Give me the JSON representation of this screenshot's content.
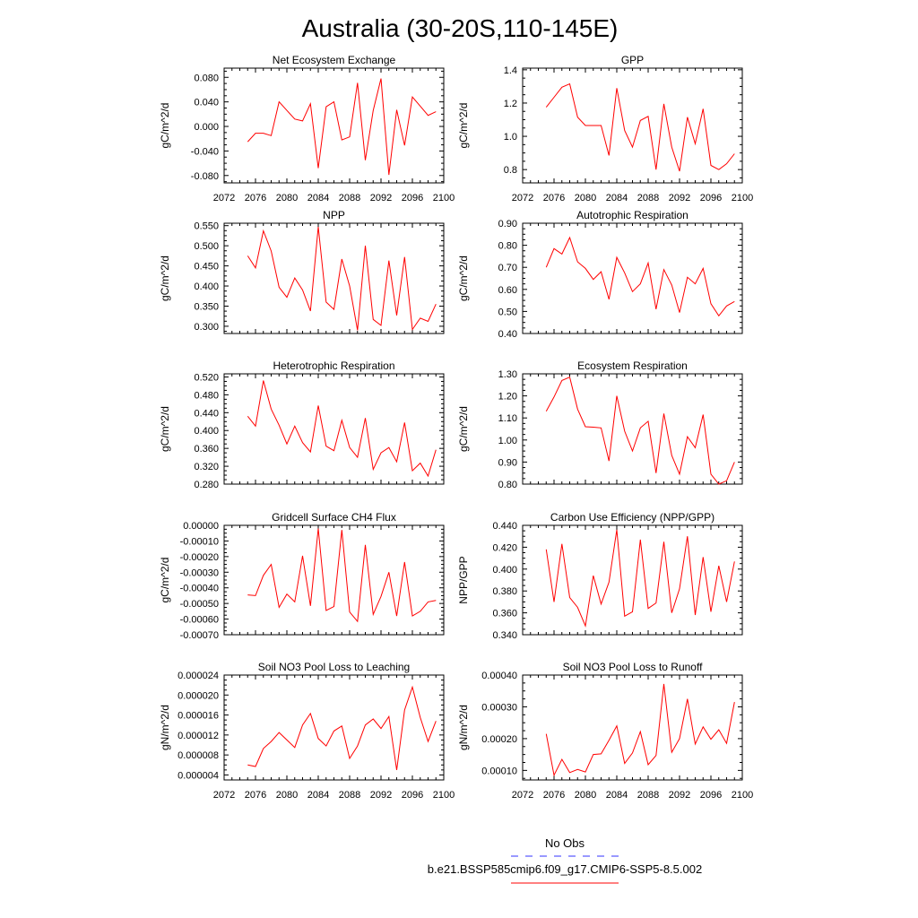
{
  "title": "Australia (30-20S,110-145E)",
  "legend": {
    "obs_label": "No Obs",
    "obs_color": "#3333ff",
    "model_label": "b.e21.BSSP585cmip6.f09_g17.CMIP6-SSP5-8.5.002",
    "model_color": "#ff0000"
  },
  "chart_data": [
    {
      "type": "line",
      "title": "Net Ecosystem Exchange",
      "ylabel": "gC/m^2/d",
      "xlim": [
        2072,
        2100
      ],
      "xticks": [
        "2072",
        "2076",
        "2080",
        "2084",
        "2088",
        "2092",
        "2096",
        "2100"
      ],
      "ylim": [
        -0.092,
        0.095
      ],
      "yticks": [
        "0.080",
        "0.040",
        "0.000",
        "-0.040",
        "-0.080"
      ],
      "x": [
        2075,
        2076,
        2077,
        2078,
        2079,
        2080,
        2081,
        2082,
        2083,
        2084,
        2085,
        2086,
        2087,
        2088,
        2089,
        2090,
        2091,
        2092,
        2093,
        2094,
        2095,
        2096,
        2097,
        2098,
        2099
      ],
      "series": [
        {
          "values": [
            -0.025,
            -0.011,
            -0.011,
            -0.015,
            0.04,
            0.026,
            0.012,
            0.009,
            0.037,
            -0.068,
            0.032,
            0.04,
            -0.022,
            -0.017,
            0.071,
            -0.055,
            0.026,
            0.078,
            -0.079,
            0.027,
            -0.031,
            0.048,
            0.033,
            0.018,
            0.024
          ]
        }
      ]
    },
    {
      "type": "line",
      "title": "GPP",
      "ylabel": "gC/m^2/d",
      "xlim": [
        2072,
        2100
      ],
      "xticks": [
        "2072",
        "2076",
        "2080",
        "2084",
        "2088",
        "2092",
        "2096",
        "2100"
      ],
      "ylim": [
        0.72,
        1.41
      ],
      "yticks": [
        "1.4",
        "1.2",
        "1.0",
        "0.8"
      ],
      "x": [
        2075,
        2076,
        2077,
        2078,
        2079,
        2080,
        2081,
        2082,
        2083,
        2084,
        2085,
        2086,
        2087,
        2088,
        2089,
        2090,
        2091,
        2092,
        2093,
        2094,
        2095,
        2096,
        2097,
        2098,
        2099
      ],
      "series": [
        {
          "values": [
            1.175,
            1.235,
            1.295,
            1.315,
            1.115,
            1.065,
            1.065,
            1.065,
            0.885,
            1.29,
            1.035,
            0.935,
            1.095,
            1.12,
            0.8,
            1.195,
            0.935,
            0.79,
            1.115,
            0.955,
            1.165,
            0.825,
            0.8,
            0.835,
            0.895
          ]
        }
      ]
    },
    {
      "type": "line",
      "title": "NPP",
      "ylabel": "gC/m^2/d",
      "xlim": [
        2072,
        2100
      ],
      "xticks": [
        "2072",
        "2076",
        "2080",
        "2084",
        "2088",
        "2092",
        "2096",
        "2100"
      ],
      "ylim": [
        0.282,
        0.556
      ],
      "yticks": [
        "0.550",
        "0.500",
        "0.450",
        "0.400",
        "0.350",
        "0.300"
      ],
      "x": [
        2075,
        2076,
        2077,
        2078,
        2079,
        2080,
        2081,
        2082,
        2083,
        2084,
        2085,
        2086,
        2087,
        2088,
        2089,
        2090,
        2091,
        2092,
        2093,
        2094,
        2095,
        2096,
        2097,
        2098,
        2099
      ],
      "series": [
        {
          "values": [
            0.475,
            0.445,
            0.537,
            0.487,
            0.397,
            0.372,
            0.42,
            0.39,
            0.338,
            0.547,
            0.36,
            0.342,
            0.467,
            0.4,
            0.29,
            0.5,
            0.317,
            0.302,
            0.463,
            0.327,
            0.472,
            0.292,
            0.32,
            0.312,
            0.355
          ]
        }
      ]
    },
    {
      "type": "line",
      "title": "Autotrophic Respiration",
      "ylabel": "gC/m^2/d",
      "xlim": [
        2072,
        2100
      ],
      "xticks": [
        "2072",
        "2076",
        "2080",
        "2084",
        "2088",
        "2092",
        "2096",
        "2100"
      ],
      "ylim": [
        0.4,
        0.9
      ],
      "yticks": [
        "0.90",
        "0.80",
        "0.70",
        "0.60",
        "0.50",
        "0.40"
      ],
      "x": [
        2075,
        2076,
        2077,
        2078,
        2079,
        2080,
        2081,
        2082,
        2083,
        2084,
        2085,
        2086,
        2087,
        2088,
        2089,
        2090,
        2091,
        2092,
        2093,
        2094,
        2095,
        2096,
        2097,
        2098,
        2099
      ],
      "series": [
        {
          "values": [
            0.7,
            0.785,
            0.76,
            0.835,
            0.725,
            0.695,
            0.645,
            0.68,
            0.555,
            0.745,
            0.675,
            0.59,
            0.625,
            0.72,
            0.51,
            0.69,
            0.62,
            0.495,
            0.655,
            0.625,
            0.695,
            0.535,
            0.48,
            0.525,
            0.545
          ]
        }
      ]
    },
    {
      "type": "line",
      "title": "Heterotrophic Respiration",
      "ylabel": "gC/m^2/d",
      "xlim": [
        2072,
        2100
      ],
      "xticks": [
        "2072",
        "2076",
        "2080",
        "2084",
        "2088",
        "2092",
        "2096",
        "2100"
      ],
      "ylim": [
        0.28,
        0.527
      ],
      "yticks": [
        "0.520",
        "0.480",
        "0.440",
        "0.400",
        "0.360",
        "0.320",
        "0.280"
      ],
      "x": [
        2075,
        2076,
        2077,
        2078,
        2079,
        2080,
        2081,
        2082,
        2083,
        2084,
        2085,
        2086,
        2087,
        2088,
        2089,
        2090,
        2091,
        2092,
        2093,
        2094,
        2095,
        2096,
        2097,
        2098,
        2099
      ],
      "series": [
        {
          "values": [
            0.432,
            0.41,
            0.512,
            0.448,
            0.412,
            0.37,
            0.41,
            0.373,
            0.352,
            0.456,
            0.365,
            0.355,
            0.423,
            0.362,
            0.34,
            0.428,
            0.313,
            0.35,
            0.362,
            0.33,
            0.418,
            0.31,
            0.327,
            0.298,
            0.357
          ]
        }
      ]
    },
    {
      "type": "line",
      "title": "Ecosystem Respiration",
      "ylabel": "gC/m^2/d",
      "xlim": [
        2072,
        2100
      ],
      "xticks": [
        "2072",
        "2076",
        "2080",
        "2084",
        "2088",
        "2092",
        "2096",
        "2100"
      ],
      "ylim": [
        0.8,
        1.3
      ],
      "yticks": [
        "1.30",
        "1.20",
        "1.10",
        "1.00",
        "0.90",
        "0.80"
      ],
      "x": [
        2075,
        2076,
        2077,
        2078,
        2079,
        2080,
        2081,
        2082,
        2083,
        2084,
        2085,
        2086,
        2087,
        2088,
        2089,
        2090,
        2091,
        2092,
        2093,
        2094,
        2095,
        2096,
        2097,
        2098,
        2099
      ],
      "series": [
        {
          "values": [
            1.13,
            1.195,
            1.27,
            1.285,
            1.14,
            1.06,
            1.058,
            1.055,
            0.905,
            1.2,
            1.04,
            0.95,
            1.055,
            1.085,
            0.85,
            1.12,
            0.93,
            0.845,
            1.015,
            0.965,
            1.115,
            0.845,
            0.8,
            0.815,
            0.9
          ]
        }
      ]
    },
    {
      "type": "line",
      "title": "Gridcell Surface CH4 Flux",
      "ylabel": "gC/m^2/d",
      "xlim": [
        2072,
        2100
      ],
      "xticks": [
        "2072",
        "2076",
        "2080",
        "2084",
        "2088",
        "2092",
        "2096",
        "2100"
      ],
      "ylim": [
        -0.0007,
        0.0
      ],
      "yticks": [
        "0.00000",
        "-0.00010",
        "-0.00020",
        "-0.00030",
        "-0.00040",
        "-0.00050",
        "-0.00060",
        "-0.00070"
      ],
      "x": [
        2075,
        2076,
        2077,
        2078,
        2079,
        2080,
        2081,
        2082,
        2083,
        2084,
        2085,
        2086,
        2087,
        2088,
        2089,
        2090,
        2091,
        2092,
        2093,
        2094,
        2095,
        2096,
        2097,
        2098,
        2099
      ],
      "series": [
        {
          "values": [
            -0.000445,
            -0.00045,
            -0.00032,
            -0.00025,
            -0.000525,
            -0.00044,
            -0.00049,
            -0.000195,
            -0.000515,
            -2e-05,
            -0.000545,
            -0.00052,
            -3e-05,
            -0.000555,
            -0.000615,
            -0.000125,
            -0.00057,
            -0.000455,
            -0.0003,
            -0.00058,
            -0.000235,
            -0.00058,
            -0.00055,
            -0.00049,
            -0.00048
          ]
        }
      ]
    },
    {
      "type": "line",
      "title": "Carbon Use Efficiency (NPP/GPP)",
      "ylabel": "NPP/GPP",
      "xlim": [
        2072,
        2100
      ],
      "xticks": [
        "2072",
        "2076",
        "2080",
        "2084",
        "2088",
        "2092",
        "2096",
        "2100"
      ],
      "ylim": [
        0.34,
        0.44
      ],
      "yticks": [
        "0.440",
        "0.420",
        "0.400",
        "0.380",
        "0.360",
        "0.340"
      ],
      "x": [
        2075,
        2076,
        2077,
        2078,
        2079,
        2080,
        2081,
        2082,
        2083,
        2084,
        2085,
        2086,
        2087,
        2088,
        2089,
        2090,
        2091,
        2092,
        2093,
        2094,
        2095,
        2096,
        2097,
        2098,
        2099
      ],
      "series": [
        {
          "values": [
            0.418,
            0.37,
            0.423,
            0.374,
            0.365,
            0.348,
            0.394,
            0.368,
            0.388,
            0.436,
            0.357,
            0.361,
            0.427,
            0.364,
            0.369,
            0.425,
            0.36,
            0.382,
            0.43,
            0.358,
            0.411,
            0.361,
            0.403,
            0.37,
            0.407
          ]
        }
      ]
    },
    {
      "type": "line",
      "title": "Soil NO3 Pool Loss to Leaching",
      "ylabel": "gN/m^2/d",
      "xlim": [
        2072,
        2100
      ],
      "xticks": [
        "2072",
        "2076",
        "2080",
        "2084",
        "2088",
        "2092",
        "2096",
        "2100"
      ],
      "ylim": [
        3e-06,
        2.4e-05
      ],
      "yticks": [
        "0.000024",
        "0.000020",
        "0.000016",
        "0.000012",
        "0.000008",
        "0.000004"
      ],
      "x": [
        2075,
        2076,
        2077,
        2078,
        2079,
        2080,
        2081,
        2082,
        2083,
        2084,
        2085,
        2086,
        2087,
        2088,
        2089,
        2090,
        2091,
        2092,
        2093,
        2094,
        2095,
        2096,
        2097,
        2098,
        2099
      ],
      "series": [
        {
          "values": [
            6e-06,
            5.7e-06,
            9.3e-06,
            1.07e-05,
            1.25e-05,
            1.1e-05,
            9.5e-06,
            1.4e-05,
            1.63e-05,
            1.13e-05,
            9.8e-06,
            1.28e-05,
            1.38e-05,
            7.3e-06,
            9.8e-06,
            1.4e-05,
            1.52e-05,
            1.33e-05,
            1.57e-05,
            5e-06,
            1.7e-05,
            2.16e-05,
            1.55e-05,
            1.07e-05,
            1.48e-05
          ]
        }
      ]
    },
    {
      "type": "line",
      "title": "Soil NO3 Pool Loss to Runoff",
      "ylabel": "gN/m^2/d",
      "xlim": [
        2072,
        2100
      ],
      "xticks": [
        "2072",
        "2076",
        "2080",
        "2084",
        "2088",
        "2092",
        "2096",
        "2100"
      ],
      "ylim": [
        7e-05,
        0.0004
      ],
      "yticks": [
        "0.00040",
        "0.00030",
        "0.00020",
        "0.00010"
      ],
      "x": [
        2075,
        2076,
        2077,
        2078,
        2079,
        2080,
        2081,
        2082,
        2083,
        2084,
        2085,
        2086,
        2087,
        2088,
        2089,
        2090,
        2091,
        2092,
        2093,
        2094,
        2095,
        2096,
        2097,
        2098,
        2099
      ],
      "series": [
        {
          "values": [
            0.000215,
            8.5e-05,
            0.000135,
            9.3e-05,
            0.000103,
            9.5e-05,
            0.00015,
            0.000152,
            0.000195,
            0.00024,
            0.000122,
            0.000155,
            0.000222,
            0.000118,
            0.000147,
            0.000372,
            0.000157,
            0.0002,
            0.000325,
            0.000183,
            0.000237,
            0.000198,
            0.000228,
            0.000185,
            0.000315
          ]
        }
      ]
    }
  ]
}
